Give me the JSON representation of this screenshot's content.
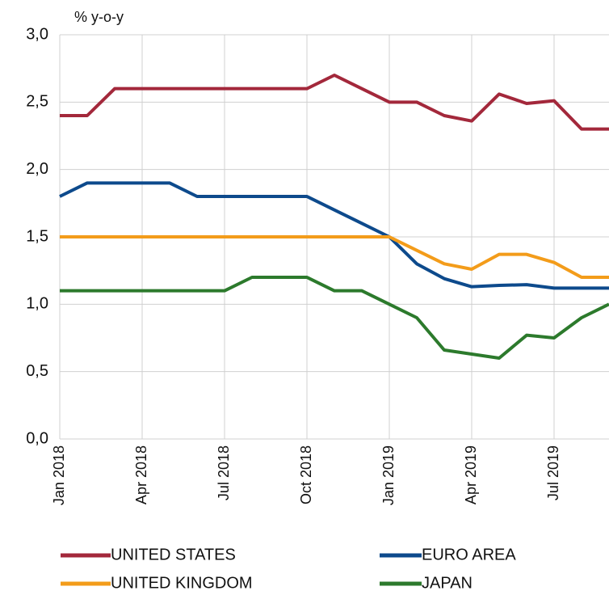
{
  "chart_data": {
    "type": "line",
    "ylabel": "% y-o-y",
    "categories": [
      "Jan 2018",
      null,
      null,
      "Apr 2018",
      null,
      null,
      "Jul 2018",
      null,
      null,
      "Oct 2018",
      null,
      null,
      "Jan 2019",
      null,
      null,
      "Apr 2019",
      null,
      null,
      "Jul 2019",
      null,
      null
    ],
    "series": [
      {
        "name": "UNITED STATES",
        "color": "#a3283b",
        "values": [
          2.4,
          2.4,
          2.6,
          2.6,
          2.6,
          2.6,
          2.6,
          2.6,
          2.6,
          2.6,
          2.7,
          2.6,
          2.5,
          2.5,
          2.4,
          2.36,
          2.56,
          2.49,
          2.51,
          2.3,
          2.3
        ]
      },
      {
        "name": "EURO AREA",
        "color": "#0d4a8c",
        "values": [
          1.8,
          1.9,
          1.9,
          1.9,
          1.9,
          1.8,
          1.8,
          1.8,
          1.8,
          1.8,
          1.7,
          1.6,
          1.5,
          1.3,
          1.19,
          1.13,
          1.14,
          1.145,
          1.12,
          1.12,
          1.12
        ]
      },
      {
        "name": "UNITED KINGDOM",
        "color": "#f39c1a",
        "values": [
          1.5,
          1.5,
          1.5,
          1.5,
          1.5,
          1.5,
          1.5,
          1.5,
          1.5,
          1.5,
          1.5,
          1.5,
          1.5,
          1.4,
          1.3,
          1.26,
          1.37,
          1.37,
          1.31,
          1.2,
          1.2
        ]
      },
      {
        "name": "JAPAN",
        "color": "#2c7a2c",
        "values": [
          1.1,
          1.1,
          1.1,
          1.1,
          1.1,
          1.1,
          1.1,
          1.2,
          1.2,
          1.2,
          1.1,
          1.1,
          1.0,
          0.9,
          0.66,
          0.63,
          0.6,
          0.77,
          0.75,
          0.9,
          1.0
        ]
      }
    ],
    "ylim": [
      0,
      3
    ],
    "yticks": [
      {
        "value": 0,
        "label": "0,0"
      },
      {
        "value": 0.5,
        "label": "0,5"
      },
      {
        "value": 1,
        "label": "1,0"
      },
      {
        "value": 1.5,
        "label": "1,5"
      },
      {
        "value": 2,
        "label": "2,0"
      },
      {
        "value": 2.5,
        "label": "2,5"
      },
      {
        "value": 3,
        "label": "3,0"
      }
    ],
    "grid": true
  }
}
